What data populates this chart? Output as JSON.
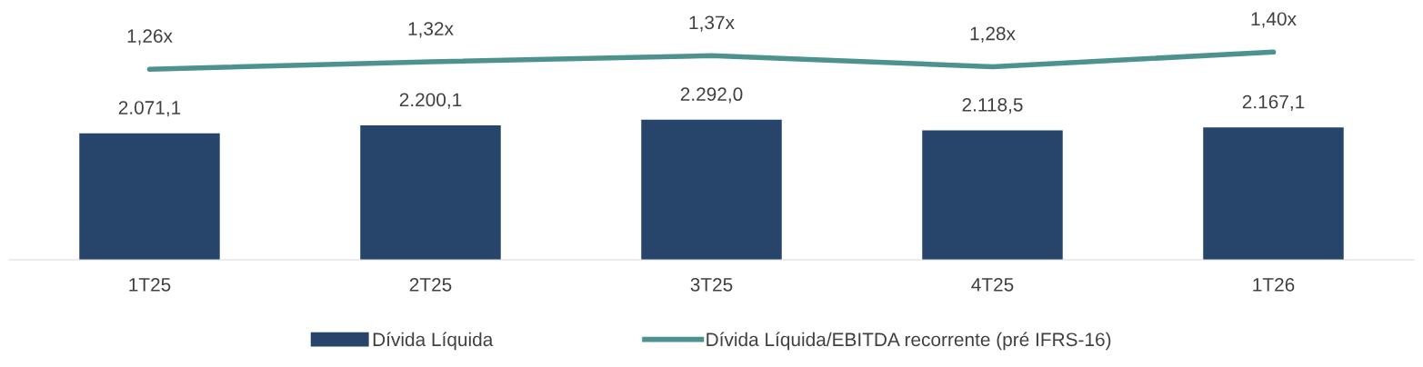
{
  "chart_data": [
    {
      "type": "bar",
      "categories": [
        "1T25",
        "2T25",
        "3T25",
        "4T25",
        "1T26"
      ],
      "series": [
        {
          "name": "Dívida Líquida",
          "color": "#27456a",
          "values": [
            2071.1,
            2200.1,
            2292.0,
            2118.5,
            2167.1
          ],
          "value_labels": [
            "2.071,1",
            "2.200,1",
            "2.292,0",
            "2.118,5",
            "2.167,1"
          ]
        }
      ],
      "tick_labels": "x",
      "legend": "bottom"
    },
    {
      "type": "line",
      "categories": [
        null,
        null,
        null,
        null,
        null
      ],
      "series": [
        {
          "name": "Dívida Líquida/EBITDA recorrente (pré IFRS-16)",
          "color": "#4e9290",
          "values": [
            1.26,
            1.32,
            1.37,
            1.28,
            1.4
          ],
          "value_labels": [
            "1,26x",
            "1,32x",
            "1,37x",
            "1,28x",
            "1,40x"
          ]
        }
      ],
      "tick_labels": false,
      "legend": "bottom",
      "marker": "none",
      "line_style": "solid"
    }
  ]
}
